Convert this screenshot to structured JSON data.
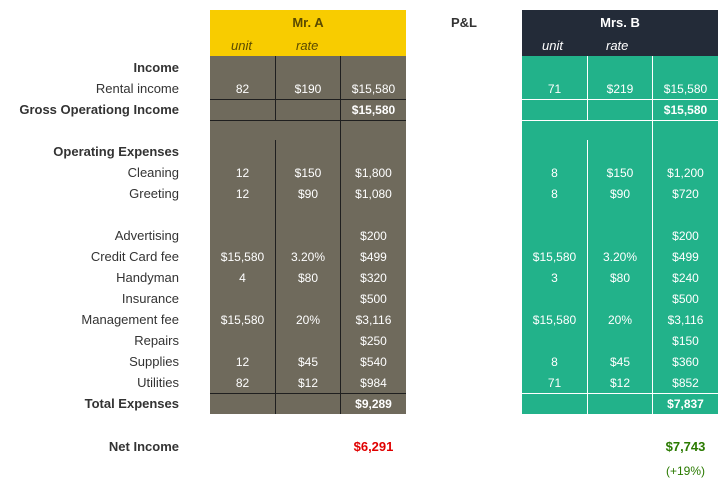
{
  "header": {
    "person_a": "Mr. A",
    "person_b": "Mrs. B",
    "center": "P&L",
    "unit_label": "unit",
    "rate_label": "rate"
  },
  "labels": {
    "income": "Income",
    "rental": "Rental income",
    "gross": "Gross Operationg Income",
    "opex": "Operating Expenses",
    "cleaning": "Cleaning",
    "greeting": "Greeting",
    "advertising": "Advertising",
    "credit": "Credit Card fee",
    "handyman": "Handyman",
    "insurance": "Insurance",
    "management": "Management fee",
    "repairs": "Repairs",
    "supplies": "Supplies",
    "utilities": "Utilities",
    "total": "Total Expenses",
    "net": "Net Income"
  },
  "a": {
    "rental": [
      "82",
      "$190",
      "$15,580"
    ],
    "gross": "$15,580",
    "cleaning": [
      "12",
      "$150",
      "$1,800"
    ],
    "greeting": [
      "12",
      "$90",
      "$1,080"
    ],
    "advertising": [
      "",
      "",
      "$200"
    ],
    "credit": [
      "$15,580",
      "3.20%",
      "$499"
    ],
    "handyman": [
      "4",
      "$80",
      "$320"
    ],
    "insurance": [
      "",
      "",
      "$500"
    ],
    "management": [
      "$15,580",
      "20%",
      "$3,116"
    ],
    "repairs": [
      "",
      "",
      "$250"
    ],
    "supplies": [
      "12",
      "$45",
      "$540"
    ],
    "utilities": [
      "82",
      "$12",
      "$984"
    ],
    "total": "$9,289",
    "net": "$6,291"
  },
  "b": {
    "rental": [
      "71",
      "$219",
      "$15,580"
    ],
    "gross": "$15,580",
    "cleaning": [
      "8",
      "$150",
      "$1,200"
    ],
    "greeting": [
      "8",
      "$90",
      "$720"
    ],
    "advertising": [
      "",
      "",
      "$200"
    ],
    "credit": [
      "$15,580",
      "3.20%",
      "$499"
    ],
    "handyman": [
      "3",
      "$80",
      "$240"
    ],
    "insurance": [
      "",
      "",
      "$500"
    ],
    "management": [
      "$15,580",
      "20%",
      "$3,116"
    ],
    "repairs": [
      "",
      "",
      "$150"
    ],
    "supplies": [
      "8",
      "$45",
      "$360"
    ],
    "utilities": [
      "71",
      "$12",
      "$852"
    ],
    "total": "$7,837",
    "net": "$7,743",
    "change": "(+19%)"
  },
  "colors": {
    "mr_a_header": "#f8cc00",
    "mr_a_body": "#6f6a5c",
    "mrs_b_header": "#232b38",
    "mrs_b_body": "#22b28a",
    "net_negative_style": "#e00000",
    "net_positive_style": "#2a7a00"
  }
}
